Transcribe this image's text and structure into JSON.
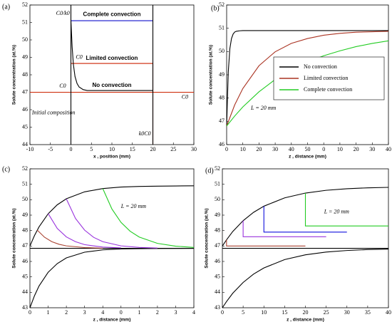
{
  "chart_data": [
    {
      "type": "line",
      "panel": "(a)",
      "xlabel": "x , position (mm)",
      "ylabel": "Solute concentration (at.%)",
      "xlim": [
        -10,
        30
      ],
      "xticks": [
        -10,
        -5,
        0,
        5,
        10,
        15,
        20,
        25,
        30
      ],
      "ylim": [
        44,
        52
      ],
      "yticks": [
        44,
        45,
        46,
        47,
        48,
        49,
        50,
        51,
        52
      ],
      "series": [
        {
          "name": "Complete convection",
          "color": "#1010cc",
          "x": [
            0,
            20
          ],
          "values": [
            51.1,
            51.1
          ]
        },
        {
          "name": "Limited convection",
          "color": "#cc2200",
          "x": [
            0,
            20,
            20
          ],
          "values": [
            48.65,
            48.65,
            44
          ]
        },
        {
          "name": "No convection",
          "color": "#000000",
          "x": [
            0,
            0.3,
            0.6,
            1,
            1.5,
            2,
            3,
            4,
            6,
            20
          ],
          "values": [
            51.1,
            49.6,
            48.6,
            47.9,
            47.5,
            47.3,
            47.15,
            47.1,
            47.1,
            47.1
          ]
        },
        {
          "color": "#cc2200",
          "x": [
            -10,
            30
          ],
          "values": [
            47,
            47
          ]
        },
        {
          "color": "#000000",
          "x": [
            0,
            0
          ],
          "values": [
            52,
            44
          ]
        },
        {
          "color": "#000000",
          "x": [
            20,
            20
          ],
          "values": [
            52,
            44
          ]
        }
      ],
      "annotations": [
        "C0/k0",
        "C0",
        "C0",
        "C0",
        "k0C0",
        "Initial composition"
      ]
    },
    {
      "type": "line",
      "panel": "(b)",
      "xlabel": "z , distance (mm)",
      "ylabel": "Solute concentration (at.%)",
      "xlim": [
        0,
        100
      ],
      "xticks": [
        0,
        10,
        20,
        30,
        40,
        50,
        {
          "value": 60,
          "label": "0"
        },
        {
          "value": 70,
          "label": "10"
        },
        {
          "value": 80,
          "label": "20"
        },
        {
          "value": 90,
          "label": "30"
        },
        {
          "value": 100,
          "label": "40"
        }
      ],
      "ylim": [
        46,
        52
      ],
      "yticks": [
        46,
        47,
        48,
        49,
        50,
        51,
        52
      ],
      "legend": "center right",
      "series": [
        {
          "name": "No convection",
          "color": "#000000",
          "x": [
            0,
            1,
            2,
            3,
            4,
            5,
            6,
            8,
            10,
            20,
            100
          ],
          "values": [
            46.8,
            49.12,
            50.13,
            50.56,
            50.75,
            50.84,
            50.87,
            50.89,
            50.9,
            50.9,
            50.9
          ]
        },
        {
          "name": "Limited convection",
          "color": "#aa3322",
          "x": [
            0,
            5,
            10,
            20,
            30,
            40,
            50,
            60,
            70,
            80,
            90,
            100
          ],
          "values": [
            46.8,
            47.71,
            48.41,
            49.39,
            49.99,
            50.35,
            50.56,
            50.7,
            50.78,
            50.83,
            50.85,
            50.87
          ]
        },
        {
          "name": "Complete convection",
          "color": "#22cc22",
          "x": [
            0,
            5,
            10,
            20,
            30,
            40,
            50,
            60,
            70,
            80,
            90,
            100
          ],
          "values": [
            46.8,
            47.23,
            47.62,
            48.27,
            48.8,
            49.21,
            49.55,
            49.82,
            50.03,
            50.21,
            50.35,
            50.46
          ]
        }
      ],
      "annotations": [
        "L = 20 mm"
      ]
    },
    {
      "type": "line",
      "panel": "(c)",
      "xlabel": "z , distance (mm)",
      "ylabel": "Solute concentration (at.%)",
      "xlim": [
        0,
        9
      ],
      "xticks": [
        0,
        1,
        2,
        3,
        4,
        {
          "value": 5,
          "label": "0"
        },
        {
          "value": 6,
          "label": "1"
        },
        {
          "value": 7,
          "label": "2"
        },
        {
          "value": 8,
          "label": "3"
        },
        {
          "value": 9,
          "label": "4"
        }
      ],
      "ylim": [
        43,
        52
      ],
      "yticks": [
        43,
        44,
        45,
        46,
        47,
        48,
        49,
        50,
        51,
        52
      ],
      "series": [
        {
          "color": "#000000",
          "x": [
            0,
            9
          ],
          "values": [
            46.85,
            46.85
          ]
        },
        {
          "color": "#000000",
          "x": [
            0,
            0.25,
            0.5,
            1,
            1.5,
            2,
            3,
            4,
            5,
            6,
            7,
            8,
            9
          ],
          "values": [
            47.0,
            47.68,
            48.24,
            49.09,
            49.67,
            50.06,
            50.51,
            50.72,
            50.82,
            50.86,
            50.88,
            50.89,
            50.9
          ]
        },
        {
          "color": "#000000",
          "x": [
            0,
            0.25,
            0.5,
            1,
            1.5,
            2,
            3,
            4,
            5,
            6,
            7,
            9
          ],
          "values": [
            43.0,
            43.78,
            44.41,
            45.3,
            45.86,
            46.23,
            46.6,
            46.75,
            46.81,
            46.83,
            46.84,
            46.85
          ]
        },
        {
          "color": "#aa4433",
          "x": [
            0.4,
            0.8,
            1.2,
            1.6,
            2,
            3,
            4
          ],
          "values": [
            48.03,
            47.57,
            47.28,
            47.11,
            47.01,
            46.9,
            46.86
          ]
        },
        {
          "color": "#9933dd",
          "x": [
            1,
            1.5,
            2,
            2.5,
            3,
            4,
            5
          ],
          "values": [
            49.1,
            48.14,
            47.59,
            47.28,
            47.09,
            46.93,
            46.88
          ]
        },
        {
          "color": "#9933dd",
          "x": [
            2,
            2.5,
            3,
            3.5,
            4,
            5,
            6,
            7
          ],
          "values": [
            50.05,
            48.79,
            48.03,
            47.56,
            47.28,
            47.01,
            46.91,
            46.87
          ]
        },
        {
          "color": "#22cc22",
          "x": [
            4,
            4.5,
            5,
            5.5,
            6,
            7,
            8,
            9
          ],
          "values": [
            50.72,
            49.4,
            48.53,
            47.96,
            47.58,
            47.17,
            46.99,
            46.91
          ]
        }
      ],
      "annotations": [
        "L = 20 mm"
      ]
    },
    {
      "type": "line",
      "panel": "(d)",
      "xlabel": "z , distance (mm)",
      "ylabel": "Solute concentration (at.%)",
      "xlim": [
        0,
        40
      ],
      "xticks": [
        0,
        5,
        10,
        15,
        20,
        25,
        30,
        35,
        40
      ],
      "ylim": [
        43,
        52
      ],
      "yticks": [
        43,
        44,
        45,
        46,
        47,
        48,
        49,
        50,
        51,
        52
      ],
      "series": [
        {
          "color": "#000000",
          "x": [
            0,
            40
          ],
          "values": [
            46.85,
            46.85
          ]
        },
        {
          "color": "#000000",
          "x": [
            0,
            1,
            2.5,
            5,
            7.5,
            10,
            15,
            20,
            25,
            30,
            35,
            40
          ],
          "values": [
            47.0,
            47.4,
            47.94,
            48.64,
            49.18,
            49.58,
            50.12,
            50.43,
            50.61,
            50.71,
            50.77,
            50.8
          ]
        },
        {
          "color": "#000000",
          "x": [
            0,
            1,
            2.5,
            5,
            7.5,
            10,
            15,
            20,
            25,
            30,
            35,
            40
          ],
          "values": [
            43.0,
            43.4,
            43.94,
            44.64,
            45.18,
            45.58,
            46.12,
            46.43,
            46.61,
            46.71,
            46.77,
            46.8
          ]
        },
        {
          "color": "#aa4433",
          "x": [
            1,
            1,
            20
          ],
          "values": [
            47.4,
            47.0,
            47.0
          ]
        },
        {
          "color": "#9933dd",
          "x": [
            5,
            5,
            25
          ],
          "values": [
            48.64,
            47.6,
            47.6
          ]
        },
        {
          "color": "#1010dd",
          "x": [
            10,
            10,
            30
          ],
          "values": [
            49.58,
            47.9,
            47.9
          ]
        },
        {
          "color": "#22cc22",
          "x": [
            20,
            20,
            40
          ],
          "values": [
            50.43,
            48.3,
            48.3
          ]
        }
      ],
      "annotations": [
        "L = 20 mm"
      ]
    }
  ]
}
